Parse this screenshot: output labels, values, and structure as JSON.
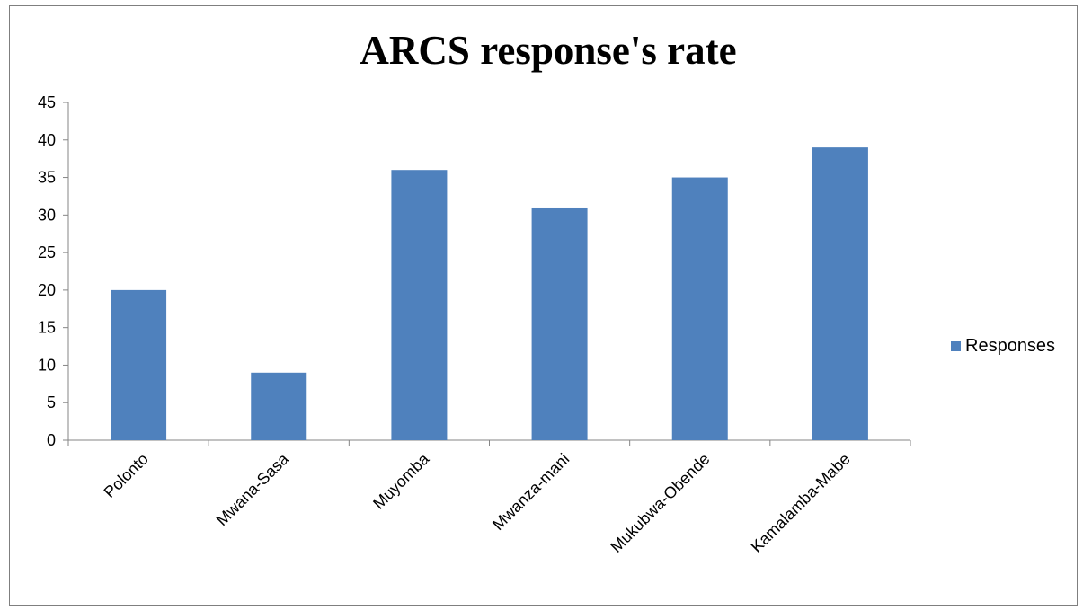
{
  "chart_data": {
    "type": "bar",
    "title": "ARCS response's rate",
    "categories": [
      "Polonto",
      "Mwana-Sasa",
      "Muyomba",
      "Mwanza-mani",
      "Mukubwa-Obende",
      "Kamalamba-Mabe"
    ],
    "series": [
      {
        "name": "Responses",
        "values": [
          20,
          9,
          36,
          31,
          35,
          39
        ],
        "color": "#4f81bd"
      }
    ],
    "ylim": [
      0,
      45
    ],
    "yticks": [
      0,
      5,
      10,
      15,
      20,
      25,
      30,
      35,
      40,
      45
    ],
    "grid": false,
    "legend_position": "right"
  }
}
